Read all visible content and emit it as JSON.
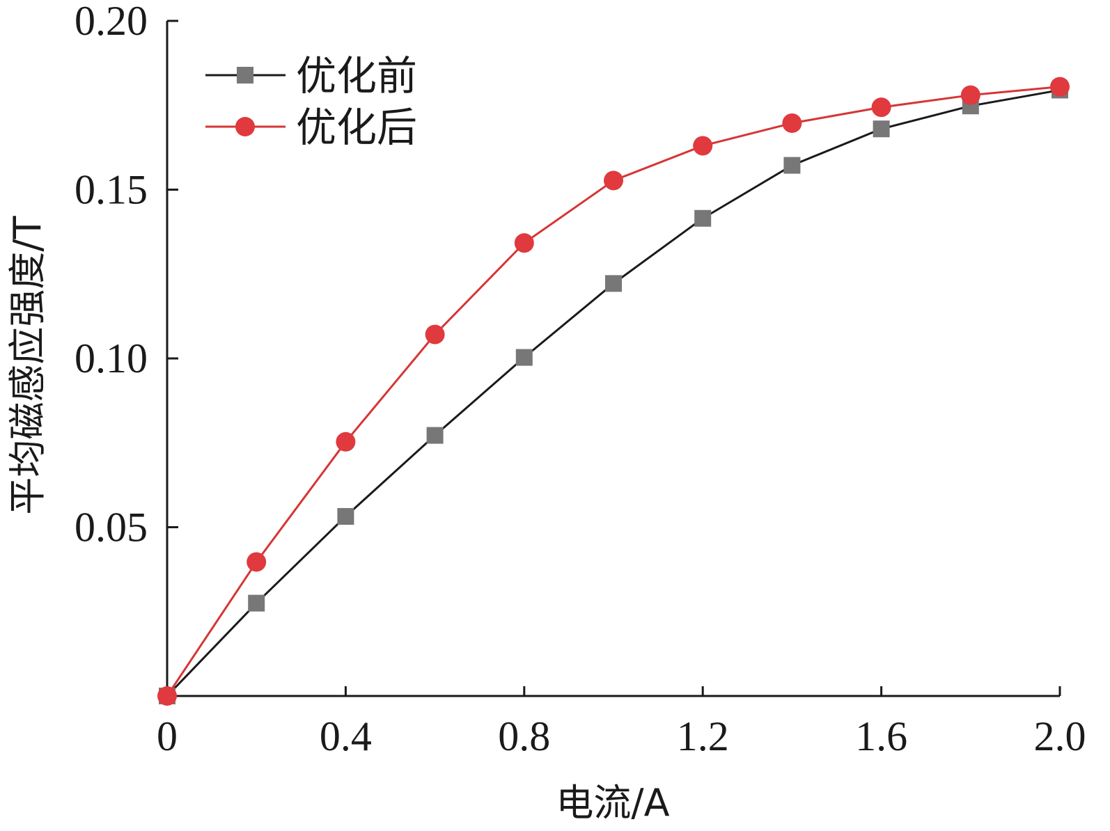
{
  "chart_data": {
    "type": "line",
    "title": "",
    "xlabel": "电流/A",
    "ylabel": "平均磁感应强度/T",
    "xlim": [
      0,
      2.0
    ],
    "ylim": [
      0,
      0.2
    ],
    "x_ticks": [
      0,
      0.4,
      0.8,
      1.2,
      1.6,
      2.0
    ],
    "x_tick_labels": [
      "0",
      "0.4",
      "0.8",
      "1.2",
      "1.6",
      "2.0"
    ],
    "y_ticks": [
      0.05,
      0.1,
      0.15,
      0.2
    ],
    "y_tick_labels": [
      "0.05",
      "0.10",
      "0.15",
      "0.20"
    ],
    "x": [
      0,
      0.2,
      0.4,
      0.6,
      0.8,
      1.0,
      1.2,
      1.4,
      1.6,
      1.8,
      2.0
    ],
    "series": [
      {
        "name": "优化前",
        "marker": "square",
        "line_color": "#1a1a1a",
        "marker_color": "#777777",
        "values": [
          0,
          0.0275,
          0.0532,
          0.0772,
          0.1003,
          0.1222,
          0.1415,
          0.1572,
          0.168,
          0.1748,
          0.1795
        ]
      },
      {
        "name": "优化后",
        "marker": "circle",
        "line_color": "#d63535",
        "marker_color": "#e0393e",
        "values": [
          0,
          0.0397,
          0.0753,
          0.1071,
          0.1342,
          0.1527,
          0.163,
          0.1697,
          0.1744,
          0.178,
          0.1805
        ]
      }
    ],
    "grid": false,
    "legend_position": "top-left"
  }
}
